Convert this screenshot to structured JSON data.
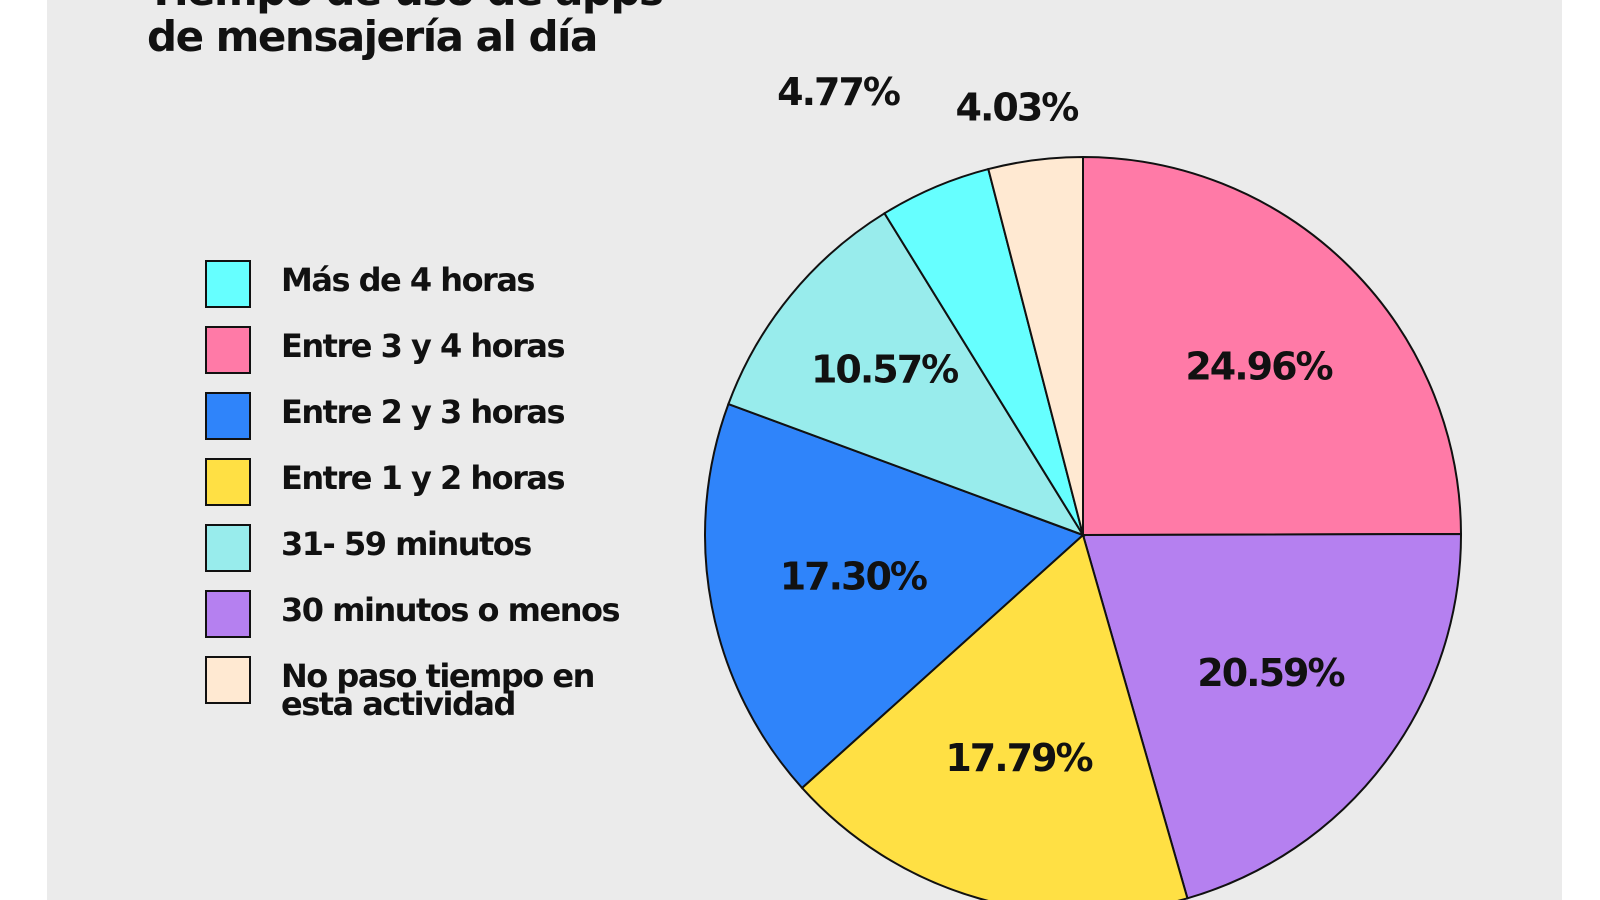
{
  "title": {
    "line1": "Tiempo de uso de apps",
    "line2": "de mensajería al día"
  },
  "chart_data": {
    "type": "pie",
    "title": "Tiempo de uso de apps de mensajería al día",
    "legend_position": "left",
    "slices": [
      {
        "label": "Entre 3 y 4 horas",
        "value": 24.96,
        "value_label": "24.96%",
        "color": "#ff7aa7"
      },
      {
        "label": "30 minutos o menos",
        "value": 20.59,
        "value_label": "20.59%",
        "color": "#b580f0"
      },
      {
        "label": "Entre 1 y 2 horas",
        "value": 17.79,
        "value_label": "17.79%",
        "color": "#ffe044"
      },
      {
        "label": "Entre 2 y 3 horas",
        "value": 17.3,
        "value_label": "17.30%",
        "color": "#2f84fa"
      },
      {
        "label": "31- 59 minutos",
        "value": 10.57,
        "value_label": "10.57%",
        "color": "#98ecec"
      },
      {
        "label": "Más de 4 horas",
        "value": 4.77,
        "value_label": "4.77%",
        "color": "#66ffff"
      },
      {
        "label": "No paso tiempo en esta actividad",
        "value": 4.03,
        "value_label": "4.03%",
        "color": "#ffe9d2"
      }
    ]
  },
  "legend": [
    {
      "label": "Más de 4 horas",
      "color": "#66ffff"
    },
    {
      "label": "Entre 3 y 4 horas",
      "color": "#ff7aa7"
    },
    {
      "label": "Entre 2 y 3 horas",
      "color": "#2f84fa"
    },
    {
      "label": "Entre 1 y 2 horas",
      "color": "#ffe044"
    },
    {
      "label": "31- 59 minutos",
      "color": "#98ecec"
    },
    {
      "label": "30 minutos o menos",
      "color": "#b580f0"
    },
    {
      "label": "No paso tiempo en esta actividad",
      "color": "#ffe9d2"
    }
  ]
}
